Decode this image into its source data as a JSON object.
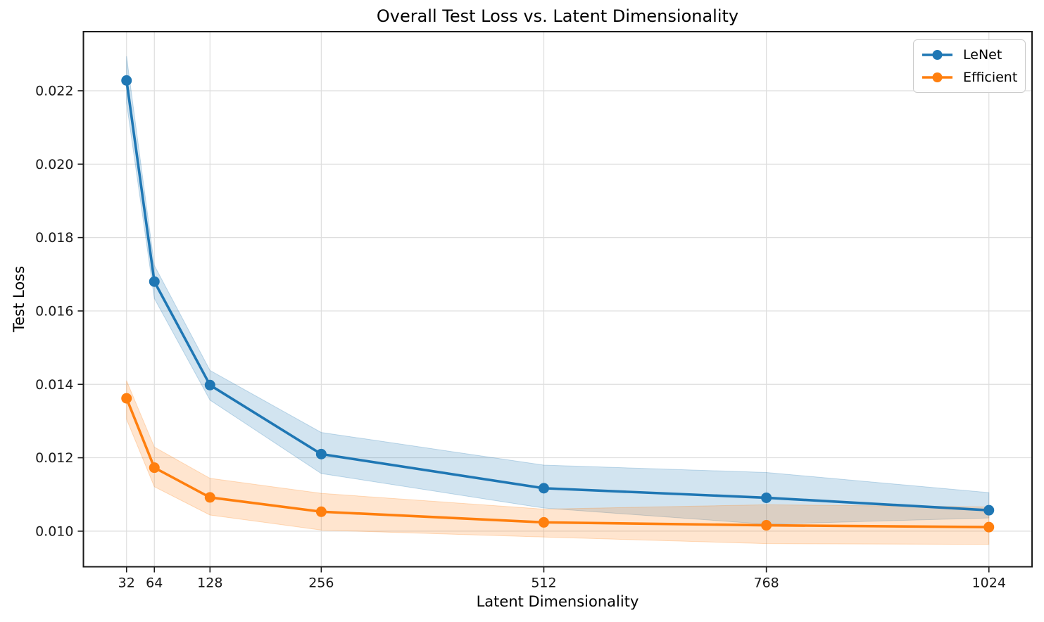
{
  "chart_data": {
    "type": "line",
    "title": "Overall Test Loss vs. Latent Dimensionality",
    "xlabel": "Latent Dimensionality",
    "ylabel": "Test Loss",
    "x": [
      32,
      64,
      128,
      256,
      512,
      768,
      1024
    ],
    "x_tick_labels": [
      "32",
      "64",
      "128",
      "256",
      "512",
      "768",
      "1024"
    ],
    "y_ticks": [
      0.01,
      0.012,
      0.014,
      0.016,
      0.018,
      0.02,
      0.022
    ],
    "y_tick_labels": [
      "0.010",
      "0.012",
      "0.014",
      "0.016",
      "0.018",
      "0.020",
      "0.022"
    ],
    "xlim": [
      -17.6,
      1073.6
    ],
    "ylim": [
      0.00903,
      0.02361
    ],
    "grid": true,
    "legend_position": "upper-right",
    "band_alpha": 0.2,
    "series": [
      {
        "name": "LeNet",
        "color": "#1f77b4",
        "values": [
          0.02228,
          0.0168,
          0.01398,
          0.0121,
          0.01117,
          0.01091,
          0.01057
        ],
        "band_lower": [
          0.02167,
          0.01634,
          0.01357,
          0.01157,
          0.01063,
          0.01019,
          0.01036
        ],
        "band_upper": [
          0.02294,
          0.01724,
          0.01438,
          0.01269,
          0.0118,
          0.0116,
          0.01105
        ]
      },
      {
        "name": "Efficient",
        "color": "#ff7f0e",
        "values": [
          0.01362,
          0.01173,
          0.01092,
          0.01053,
          0.01024,
          0.01016,
          0.01011
        ],
        "band_lower": [
          0.01305,
          0.01121,
          0.01044,
          0.01003,
          0.00984,
          0.00966,
          0.00964
        ],
        "band_upper": [
          0.0141,
          0.01229,
          0.01144,
          0.01103,
          0.0106,
          0.01072,
          0.01066
        ]
      }
    ]
  }
}
